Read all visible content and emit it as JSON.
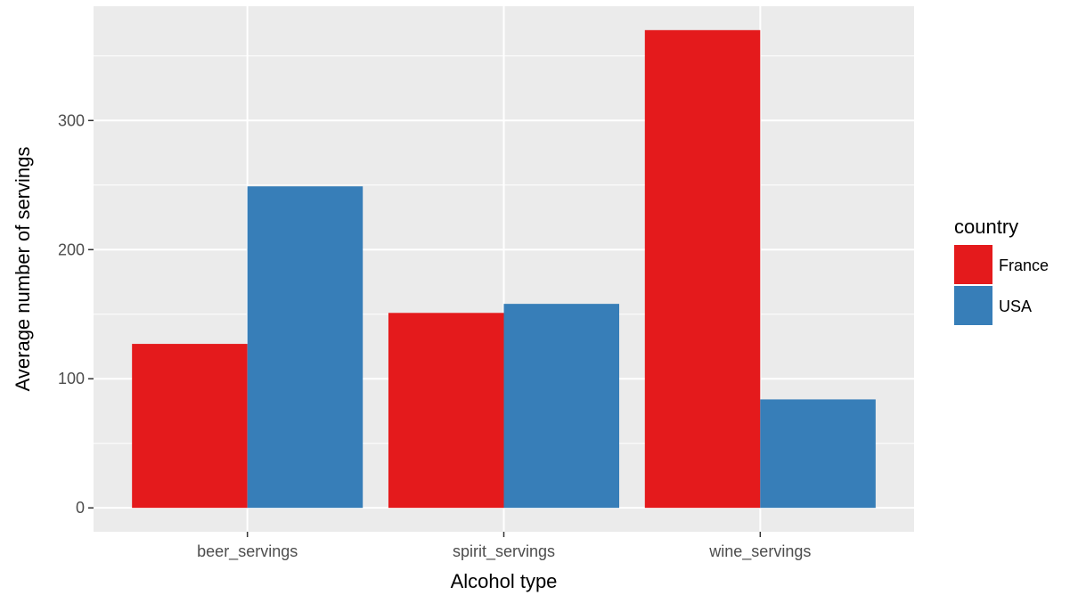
{
  "chart_data": {
    "type": "bar",
    "categories": [
      "beer_servings",
      "spirit_servings",
      "wine_servings"
    ],
    "series": [
      {
        "name": "France",
        "color": "#e41a1c",
        "values": [
          127,
          151,
          370
        ]
      },
      {
        "name": "USA",
        "color": "#377eb8",
        "values": [
          249,
          158,
          84
        ]
      }
    ],
    "xlabel": "Alcohol type",
    "ylabel": "Average number of servings",
    "ylim": [
      -18.5,
      388.5
    ],
    "yticks": [
      0,
      100,
      200,
      300
    ],
    "legend": {
      "title": "country",
      "placement": "right"
    },
    "grid": true,
    "panel_background": "#ebebeb",
    "grid_color": "#ffffff"
  }
}
